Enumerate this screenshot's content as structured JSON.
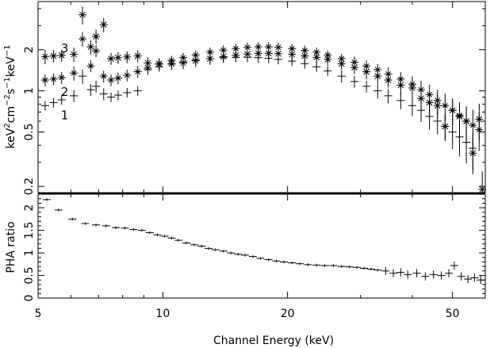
{
  "chart_data": [
    {
      "type": "scatter",
      "panel": "top",
      "x_scale": "log",
      "y_scale": "log",
      "xlim": [
        5,
        60
      ],
      "ylim": [
        0.18,
        4.5
      ],
      "ylabel_parts": [
        "keV",
        "2",
        "cm",
        "−2",
        "s",
        "−1",
        "keV",
        "−1"
      ],
      "yticks": [
        {
          "value": 0.2,
          "label": "0.2"
        },
        {
          "value": 0.5,
          "label": "0.5"
        },
        {
          "value": 1,
          "label": "1"
        },
        {
          "value": 2,
          "label": "2"
        }
      ],
      "curve_labels": [
        {
          "text": "1",
          "x": 5.4,
          "y": 0.66
        },
        {
          "text": "2",
          "x": 5.4,
          "y": 0.98
        },
        {
          "text": "3",
          "x": 5.4,
          "y": 2.05
        }
      ],
      "series": [
        {
          "marker": "star",
          "points": [
            [
              5.2,
              1.78,
              0.12
            ],
            [
              5.45,
              1.8,
              0.1
            ],
            [
              5.7,
              1.82,
              0.1
            ],
            [
              6.1,
              1.85,
              0.12
            ],
            [
              6.4,
              3.6,
              0.15
            ],
            [
              6.7,
              2.1,
              0.12
            ],
            [
              6.9,
              2.5,
              0.12
            ],
            [
              7.2,
              3.05,
              0.12
            ],
            [
              7.5,
              1.72,
              0.1
            ],
            [
              7.8,
              1.75,
              0.1
            ],
            [
              8.2,
              1.77,
              0.1
            ],
            [
              8.7,
              1.8,
              0.1
            ],
            [
              9.2,
              1.6,
              0.1
            ],
            [
              9.8,
              1.58,
              0.1
            ],
            [
              10.5,
              1.58,
              0.1
            ],
            [
              11.2,
              1.6,
              0.1
            ],
            [
              12.0,
              1.66,
              0.1
            ],
            [
              13.0,
              1.72,
              0.1
            ],
            [
              14.0,
              1.78,
              0.1
            ],
            [
              15.0,
              1.82,
              0.1
            ],
            [
              16.0,
              1.86,
              0.1
            ],
            [
              17.0,
              1.88,
              0.1
            ],
            [
              18.0,
              1.88,
              0.1
            ],
            [
              19.0,
              1.87,
              0.1
            ],
            [
              20.5,
              1.85,
              0.1
            ],
            [
              22.0,
              1.8,
              0.1
            ],
            [
              23.5,
              1.76,
              0.1
            ],
            [
              25.0,
              1.7,
              0.1
            ],
            [
              27.0,
              1.58,
              0.1
            ],
            [
              29.0,
              1.48,
              0.1
            ],
            [
              31.0,
              1.38,
              0.12
            ],
            [
              33.0,
              1.28,
              0.12
            ],
            [
              35.0,
              1.2,
              0.12
            ],
            [
              37.5,
              1.1,
              0.14
            ],
            [
              40.0,
              1.05,
              0.16
            ],
            [
              42.0,
              0.88,
              0.18
            ],
            [
              44.0,
              0.82,
              0.18
            ],
            [
              46.0,
              0.78,
              0.2
            ],
            [
              48.0,
              0.55,
              0.2
            ],
            [
              50.0,
              0.72,
              0.22
            ],
            [
              52.0,
              0.65,
              0.25
            ],
            [
              54.0,
              0.6,
              0.28
            ],
            [
              56.0,
              0.35,
              0.3
            ],
            [
              58.0,
              0.62,
              0.3
            ],
            [
              59.0,
              0.19,
              0.35
            ]
          ]
        },
        {
          "marker": "cross",
          "points": [
            [
              5.2,
              1.2,
              0.1
            ],
            [
              5.45,
              1.22,
              0.1
            ],
            [
              5.7,
              1.25,
              0.1
            ],
            [
              6.1,
              1.35,
              0.12
            ],
            [
              6.4,
              2.4,
              0.12
            ],
            [
              6.7,
              1.52,
              0.1
            ],
            [
              6.9,
              1.96,
              0.1
            ],
            [
              7.2,
              1.28,
              0.1
            ],
            [
              7.5,
              1.2,
              0.1
            ],
            [
              7.8,
              1.24,
              0.1
            ],
            [
              8.2,
              1.3,
              0.1
            ],
            [
              8.7,
              1.38,
              0.1
            ],
            [
              9.2,
              1.47,
              0.08
            ],
            [
              9.8,
              1.57,
              0.08
            ],
            [
              10.5,
              1.67,
              0.08
            ],
            [
              11.2,
              1.75,
              0.08
            ],
            [
              12.0,
              1.83,
              0.08
            ],
            [
              13.0,
              1.92,
              0.08
            ],
            [
              14.0,
              1.99,
              0.08
            ],
            [
              15.0,
              2.04,
              0.08
            ],
            [
              16.0,
              2.08,
              0.08
            ],
            [
              17.0,
              2.1,
              0.08
            ],
            [
              18.0,
              2.1,
              0.08
            ],
            [
              19.0,
              2.08,
              0.08
            ],
            [
              20.5,
              2.04,
              0.08
            ],
            [
              22.0,
              1.98,
              0.08
            ],
            [
              23.5,
              1.92,
              0.08
            ],
            [
              25.0,
              1.83,
              0.08
            ],
            [
              27.0,
              1.72,
              0.08
            ],
            [
              29.0,
              1.62,
              0.1
            ],
            [
              31.0,
              1.52,
              0.1
            ],
            [
              33.0,
              1.43,
              0.1
            ],
            [
              35.0,
              1.33,
              0.12
            ],
            [
              37.5,
              1.22,
              0.12
            ],
            [
              40.0,
              1.12,
              0.14
            ],
            [
              42.0,
              1.02,
              0.16
            ],
            [
              44.0,
              0.94,
              0.18
            ],
            [
              46.0,
              0.85,
              0.2
            ],
            [
              48.0,
              0.78,
              0.22
            ],
            [
              50.0,
              0.72,
              0.22
            ],
            [
              52.0,
              0.66,
              0.25
            ],
            [
              54.0,
              0.6,
              0.28
            ],
            [
              56.0,
              0.56,
              0.3
            ],
            [
              58.0,
              0.52,
              0.3
            ]
          ]
        },
        {
          "marker": "plus",
          "points": [
            [
              5.2,
              0.78,
              0.08
            ],
            [
              5.45,
              0.82,
              0.08
            ],
            [
              5.7,
              0.86,
              0.08
            ],
            [
              6.1,
              0.92,
              0.1
            ],
            [
              6.4,
              1.28,
              0.12
            ],
            [
              6.7,
              1.02,
              0.1
            ],
            [
              6.9,
              1.08,
              0.1
            ],
            [
              7.2,
              0.95,
              0.1
            ],
            [
              7.5,
              0.9,
              0.08
            ],
            [
              7.8,
              0.93,
              0.08
            ],
            [
              8.2,
              0.97,
              0.08
            ],
            [
              8.7,
              1.0,
              0.08
            ],
            [
              9.2,
              1.43,
              0.08
            ],
            [
              9.8,
              1.5,
              0.08
            ],
            [
              10.5,
              1.57,
              0.08
            ],
            [
              11.2,
              1.63,
              0.08
            ],
            [
              12.0,
              1.68,
              0.08
            ],
            [
              13.0,
              1.72,
              0.08
            ],
            [
              14.0,
              1.75,
              0.08
            ],
            [
              15.0,
              1.76,
              0.08
            ],
            [
              16.0,
              1.76,
              0.08
            ],
            [
              17.0,
              1.75,
              0.08
            ],
            [
              18.0,
              1.73,
              0.08
            ],
            [
              19.0,
              1.7,
              0.08
            ],
            [
              20.5,
              1.65,
              0.08
            ],
            [
              22.0,
              1.58,
              0.08
            ],
            [
              23.5,
              1.5,
              0.08
            ],
            [
              25.0,
              1.4,
              0.08
            ],
            [
              27.0,
              1.28,
              0.1
            ],
            [
              29.0,
              1.17,
              0.1
            ],
            [
              31.0,
              1.08,
              0.1
            ],
            [
              33.0,
              1.0,
              0.12
            ],
            [
              35.0,
              0.92,
              0.12
            ],
            [
              37.5,
              0.85,
              0.14
            ],
            [
              40.0,
              0.78,
              0.16
            ],
            [
              42.0,
              0.72,
              0.18
            ],
            [
              44.0,
              0.65,
              0.2
            ],
            [
              46.0,
              0.6,
              0.2
            ],
            [
              48.0,
              0.55,
              0.22
            ],
            [
              50.0,
              0.5,
              0.25
            ],
            [
              52.0,
              0.46,
              0.28
            ],
            [
              54.0,
              0.42,
              0.3
            ],
            [
              56.0,
              0.38,
              0.3
            ]
          ]
        }
      ]
    },
    {
      "type": "scatter",
      "panel": "bottom",
      "x_scale": "log",
      "y_scale": "linear",
      "xlim": [
        5,
        60
      ],
      "ylim": [
        0,
        2.3
      ],
      "xlabel": "Channel Energy (keV)",
      "ylabel": "PHA ratio",
      "xticks": [
        {
          "value": 5,
          "label": "5"
        },
        {
          "value": 10,
          "label": "10"
        },
        {
          "value": 20,
          "label": "20"
        },
        {
          "value": 50,
          "label": "50"
        }
      ],
      "yticks": [
        {
          "value": 0,
          "label": "0"
        },
        {
          "value": 0.5,
          "label": "0.5"
        },
        {
          "value": 1,
          "label": "1"
        },
        {
          "value": 1.5,
          "label": "1.5"
        },
        {
          "value": 2,
          "label": "2"
        }
      ],
      "points": [
        [
          5.25,
          2.18
        ],
        [
          5.6,
          1.95
        ],
        [
          6.05,
          1.75
        ],
        [
          6.5,
          1.65
        ],
        [
          6.9,
          1.62
        ],
        [
          7.3,
          1.6
        ],
        [
          7.7,
          1.56
        ],
        [
          8.1,
          1.55
        ],
        [
          8.5,
          1.52
        ],
        [
          8.9,
          1.5
        ],
        [
          9.3,
          1.45
        ],
        [
          9.7,
          1.4
        ],
        [
          10.1,
          1.37
        ],
        [
          10.5,
          1.33
        ],
        [
          10.9,
          1.28
        ],
        [
          11.4,
          1.22
        ],
        [
          11.9,
          1.18
        ],
        [
          12.4,
          1.15
        ],
        [
          12.9,
          1.1
        ],
        [
          13.4,
          1.07
        ],
        [
          14.0,
          1.04
        ],
        [
          14.6,
          1.0
        ],
        [
          15.2,
          0.97
        ],
        [
          15.8,
          0.95
        ],
        [
          16.5,
          0.92
        ],
        [
          17.2,
          0.88
        ],
        [
          18.0,
          0.85
        ],
        [
          18.8,
          0.82
        ],
        [
          19.6,
          0.8
        ],
        [
          20.5,
          0.78
        ],
        [
          21.4,
          0.76
        ],
        [
          22.4,
          0.74
        ],
        [
          23.5,
          0.73
        ],
        [
          24.6,
          0.72
        ],
        [
          25.8,
          0.72
        ],
        [
          27.0,
          0.7
        ],
        [
          28.2,
          0.69
        ],
        [
          29.4,
          0.68
        ],
        [
          30.6,
          0.66
        ],
        [
          31.8,
          0.64
        ],
        [
          33.0,
          0.62
        ],
        [
          34.5,
          0.6
        ],
        [
          36.0,
          0.55
        ],
        [
          37.5,
          0.57
        ],
        [
          39.0,
          0.52
        ],
        [
          41.0,
          0.55
        ],
        [
          43.0,
          0.48
        ],
        [
          45.0,
          0.52
        ],
        [
          47.0,
          0.5
        ],
        [
          49.0,
          0.55
        ],
        [
          50.5,
          0.72
        ],
        [
          52.5,
          0.48
        ],
        [
          54.5,
          0.42
        ],
        [
          56.5,
          0.45
        ],
        [
          58.5,
          0.4
        ]
      ]
    }
  ]
}
